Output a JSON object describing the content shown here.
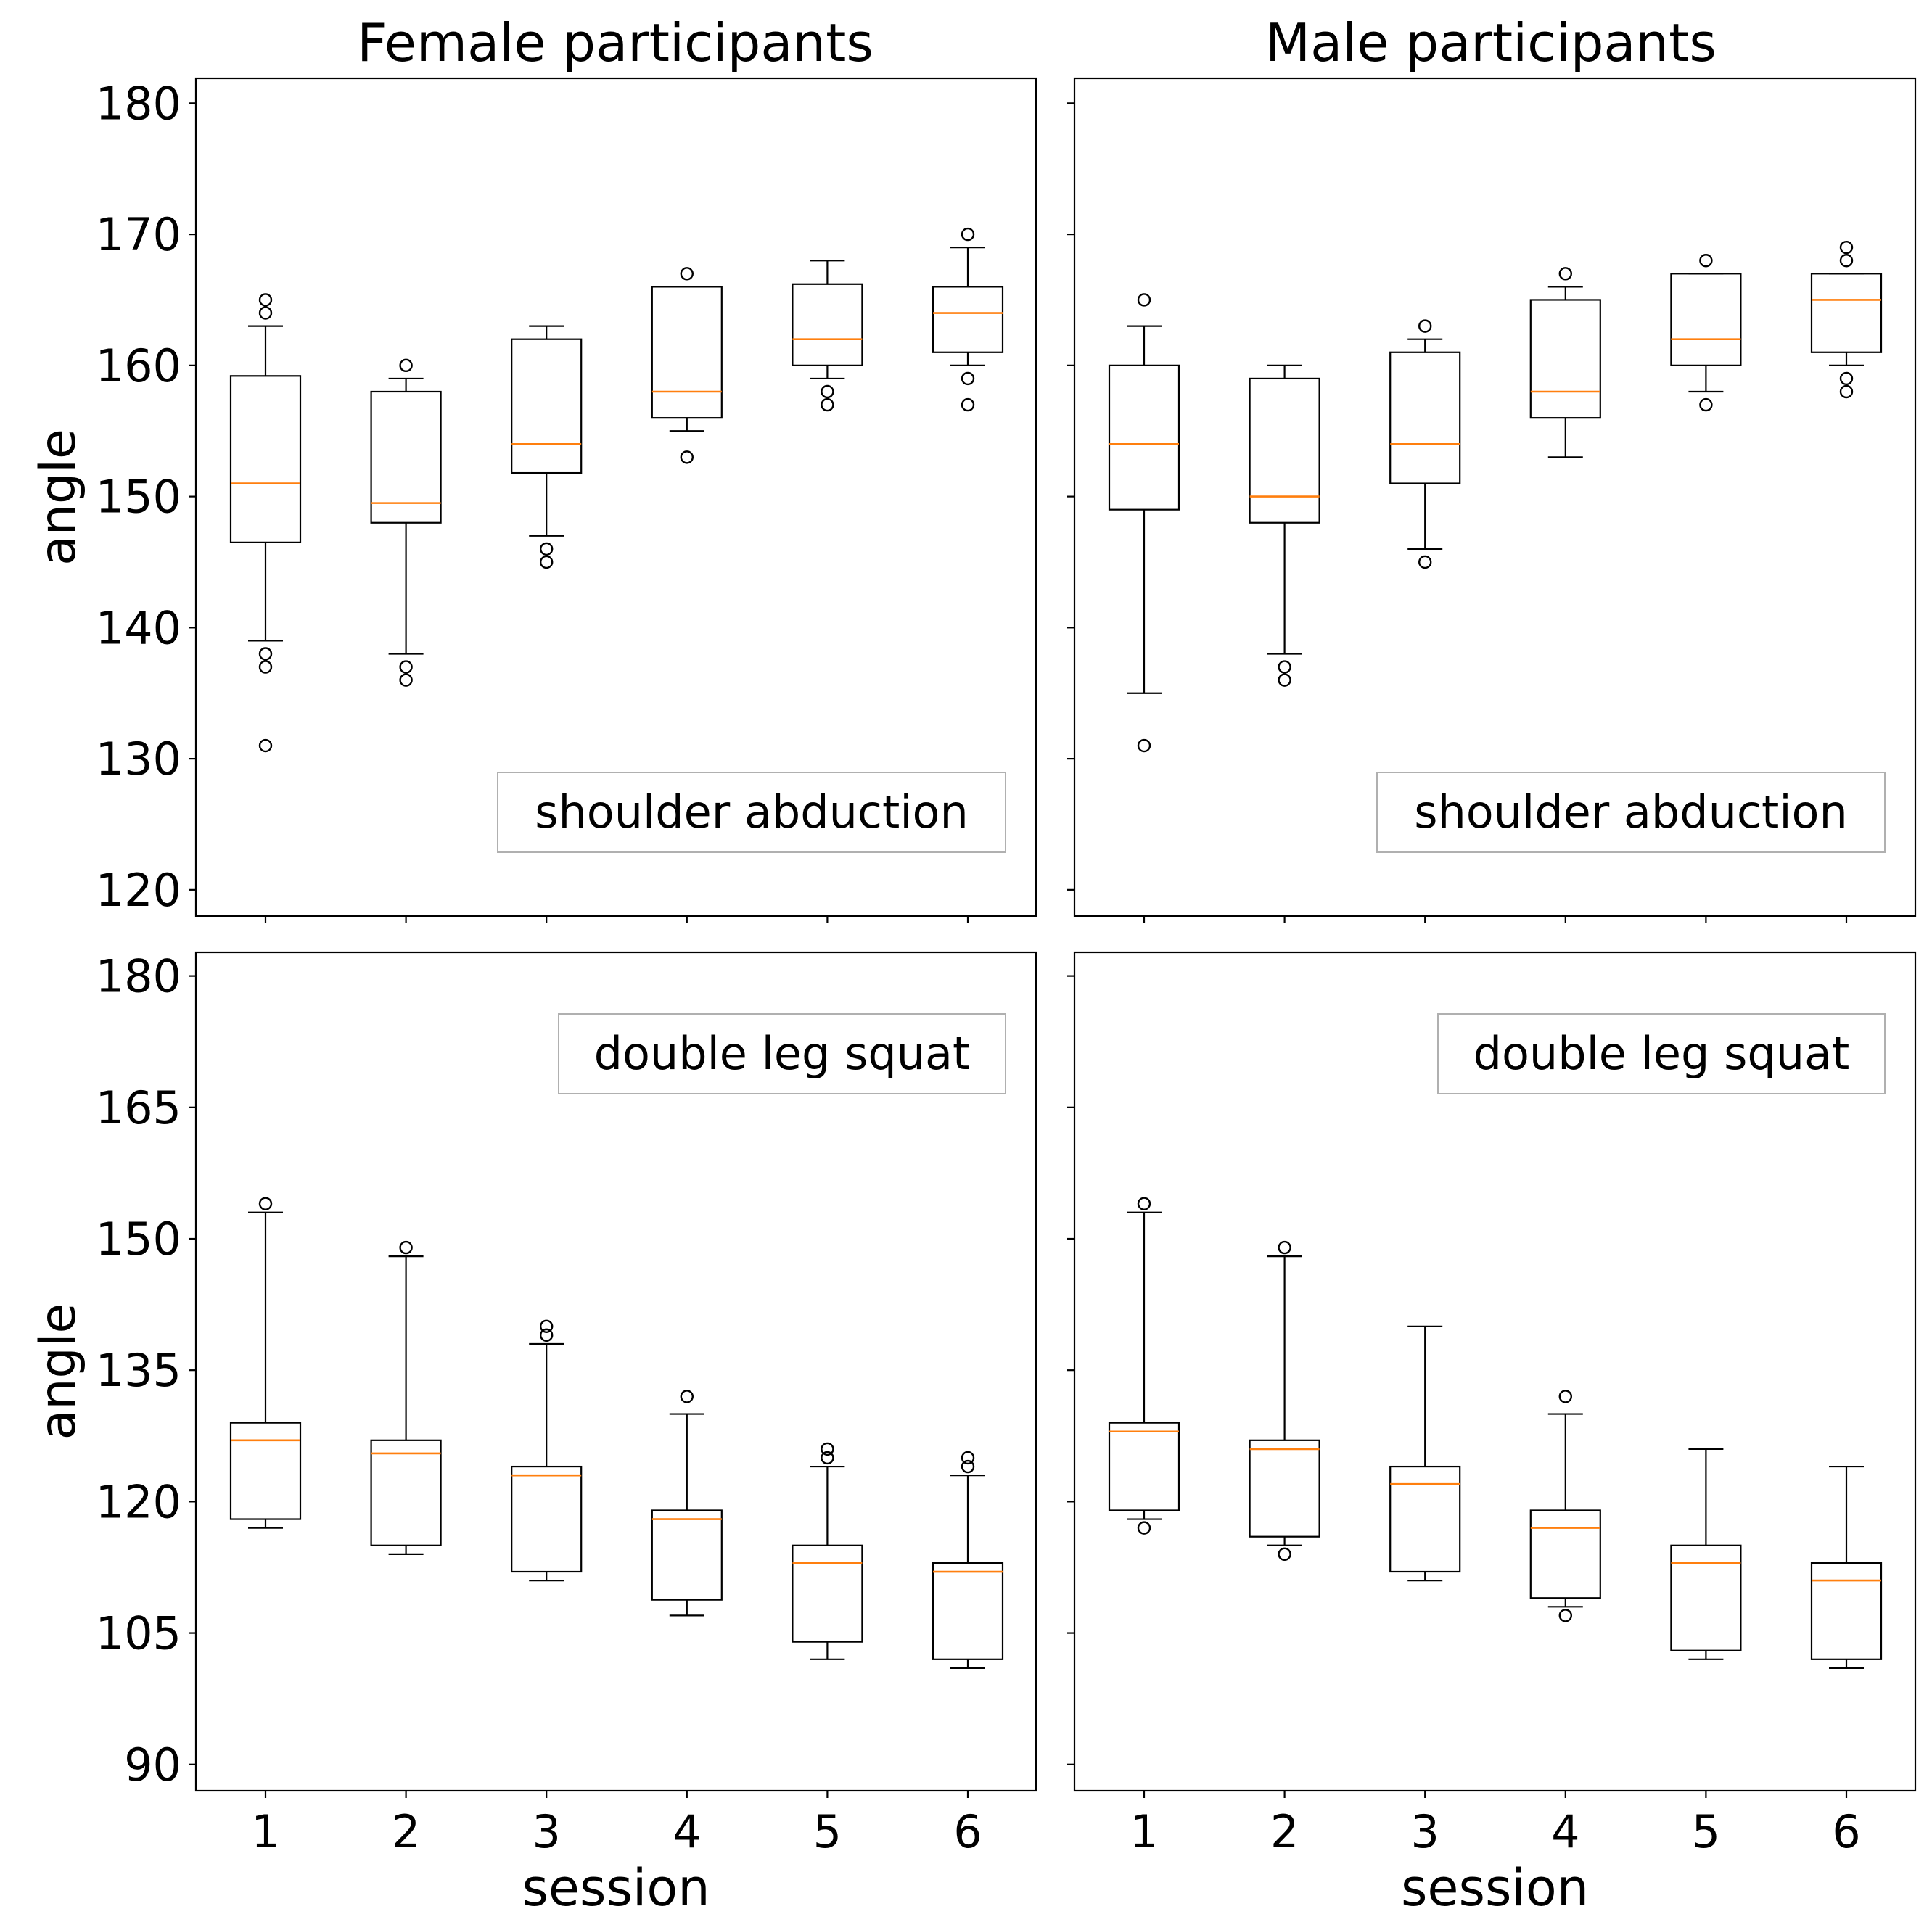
{
  "figure": {
    "column_titles": [
      "Female participants",
      "Male participants"
    ],
    "median_color": "#ff7f0e",
    "box_color": "#000000"
  },
  "chart_data": [
    {
      "type": "boxplot",
      "row": 0,
      "col": 0,
      "title": "Female participants",
      "annotation": "shoulder abduction",
      "annotation_position": "bottom-right",
      "xlabel": "",
      "ylabel": "angle",
      "categories": [
        "1",
        "2",
        "3",
        "4",
        "5",
        "6"
      ],
      "x_ticks": [
        "1",
        "2",
        "3",
        "4",
        "5",
        "6"
      ],
      "ylim": [
        118,
        181.9
      ],
      "y_ticks": [
        120,
        130,
        140,
        150,
        160,
        170,
        180
      ],
      "y_tick_labels": [
        "120",
        "130",
        "140",
        "150",
        "160",
        "170",
        "180"
      ],
      "show_x_tick_labels": false,
      "show_y_tick_labels": true,
      "boxes": [
        {
          "session": "1",
          "whislo": 139,
          "q1": 146.5,
          "med": 151,
          "q3": 159.2,
          "whishi": 163,
          "fliers": [
            131,
            137,
            138,
            164,
            165
          ]
        },
        {
          "session": "2",
          "whislo": 138,
          "q1": 148,
          "med": 149.5,
          "q3": 158,
          "whishi": 159,
          "fliers": [
            136,
            137,
            160
          ]
        },
        {
          "session": "3",
          "whislo": 147,
          "q1": 151.8,
          "med": 154,
          "q3": 162,
          "whishi": 163,
          "fliers": [
            145,
            146
          ]
        },
        {
          "session": "4",
          "whislo": 155,
          "q1": 156,
          "med": 158,
          "q3": 166,
          "whishi": 166,
          "fliers": [
            153,
            167
          ]
        },
        {
          "session": "5",
          "whislo": 159,
          "q1": 160,
          "med": 162,
          "q3": 166.2,
          "whishi": 168,
          "fliers": [
            157,
            158
          ]
        },
        {
          "session": "6",
          "whislo": 160,
          "q1": 161,
          "med": 164,
          "q3": 166,
          "whishi": 169,
          "fliers": [
            157,
            159,
            170
          ]
        }
      ]
    },
    {
      "type": "boxplot",
      "row": 0,
      "col": 1,
      "title": "Male participants",
      "annotation": "shoulder abduction",
      "annotation_position": "bottom-right",
      "xlabel": "",
      "ylabel": "",
      "categories": [
        "1",
        "2",
        "3",
        "4",
        "5",
        "6"
      ],
      "x_ticks": [
        "1",
        "2",
        "3",
        "4",
        "5",
        "6"
      ],
      "ylim": [
        118,
        181.9
      ],
      "y_ticks": [
        120,
        130,
        140,
        150,
        160,
        170,
        180
      ],
      "y_tick_labels": [
        "120",
        "130",
        "140",
        "150",
        "160",
        "170",
        "180"
      ],
      "show_x_tick_labels": false,
      "show_y_tick_labels": false,
      "boxes": [
        {
          "session": "1",
          "whislo": 135,
          "q1": 149,
          "med": 154,
          "q3": 160,
          "whishi": 163,
          "fliers": [
            131,
            165
          ]
        },
        {
          "session": "2",
          "whislo": 138,
          "q1": 148,
          "med": 150,
          "q3": 159,
          "whishi": 160,
          "fliers": [
            136,
            137
          ]
        },
        {
          "session": "3",
          "whislo": 146,
          "q1": 151,
          "med": 154,
          "q3": 161,
          "whishi": 162,
          "fliers": [
            145,
            163
          ]
        },
        {
          "session": "4",
          "whislo": 153,
          "q1": 156,
          "med": 158,
          "q3": 165,
          "whishi": 166,
          "fliers": [
            167
          ]
        },
        {
          "session": "5",
          "whislo": 158,
          "q1": 160,
          "med": 162,
          "q3": 167,
          "whishi": 167,
          "fliers": [
            157,
            168
          ]
        },
        {
          "session": "6",
          "whislo": 160,
          "q1": 161,
          "med": 165,
          "q3": 167,
          "whishi": 167,
          "fliers": [
            158,
            159,
            168,
            169
          ]
        }
      ]
    },
    {
      "type": "boxplot",
      "row": 1,
      "col": 0,
      "title": "",
      "annotation": "double leg squat",
      "annotation_position": "top-right",
      "xlabel": "session",
      "ylabel": "angle",
      "categories": [
        "1",
        "2",
        "3",
        "4",
        "5",
        "6"
      ],
      "x_ticks": [
        "1",
        "2",
        "3",
        "4",
        "5",
        "6"
      ],
      "ylim": [
        87,
        182.7
      ],
      "y_ticks": [
        90,
        105,
        120,
        135,
        150,
        165,
        180
      ],
      "y_tick_labels": [
        "90",
        "105",
        "120",
        "135",
        "150",
        "165",
        "180"
      ],
      "show_x_tick_labels": true,
      "show_y_tick_labels": true,
      "boxes": [
        {
          "session": "1",
          "whislo": 117,
          "q1": 118,
          "med": 127,
          "q3": 129,
          "whishi": 153,
          "fliers": [
            154
          ]
        },
        {
          "session": "2",
          "whislo": 114,
          "q1": 115,
          "med": 125.5,
          "q3": 127,
          "whishi": 148,
          "fliers": [
            149
          ]
        },
        {
          "session": "3",
          "whislo": 111,
          "q1": 112,
          "med": 123,
          "q3": 124,
          "whishi": 138,
          "fliers": [
            139,
            140
          ]
        },
        {
          "session": "4",
          "whislo": 107,
          "q1": 108.8,
          "med": 118,
          "q3": 119,
          "whishi": 130,
          "fliers": [
            132
          ]
        },
        {
          "session": "5",
          "whislo": 102,
          "q1": 104,
          "med": 113,
          "q3": 115,
          "whishi": 124,
          "fliers": [
            125,
            126
          ]
        },
        {
          "session": "6",
          "whislo": 101,
          "q1": 102,
          "med": 112,
          "q3": 113,
          "whishi": 123,
          "fliers": [
            124,
            125
          ]
        }
      ]
    },
    {
      "type": "boxplot",
      "row": 1,
      "col": 1,
      "title": "",
      "annotation": "double leg squat",
      "annotation_position": "top-right",
      "xlabel": "session",
      "ylabel": "",
      "categories": [
        "1",
        "2",
        "3",
        "4",
        "5",
        "6"
      ],
      "x_ticks": [
        "1",
        "2",
        "3",
        "4",
        "5",
        "6"
      ],
      "ylim": [
        87,
        182.7
      ],
      "y_ticks": [
        90,
        105,
        120,
        135,
        150,
        165,
        180
      ],
      "y_tick_labels": [
        "90",
        "105",
        "120",
        "135",
        "150",
        "165",
        "180"
      ],
      "show_x_tick_labels": true,
      "show_y_tick_labels": false,
      "boxes": [
        {
          "session": "1",
          "whislo": 118,
          "q1": 119,
          "med": 128,
          "q3": 129,
          "whishi": 153,
          "fliers": [
            117,
            154
          ]
        },
        {
          "session": "2",
          "whislo": 115,
          "q1": 116,
          "med": 126,
          "q3": 127,
          "whishi": 148,
          "fliers": [
            114,
            149
          ]
        },
        {
          "session": "3",
          "whislo": 111,
          "q1": 112,
          "med": 122,
          "q3": 124,
          "whishi": 140,
          "fliers": []
        },
        {
          "session": "4",
          "whislo": 108,
          "q1": 109,
          "med": 117,
          "q3": 119,
          "whishi": 130,
          "fliers": [
            107,
            132
          ]
        },
        {
          "session": "5",
          "whislo": 102,
          "q1": 103,
          "med": 113,
          "q3": 115,
          "whishi": 126,
          "fliers": []
        },
        {
          "session": "6",
          "whislo": 101,
          "q1": 102,
          "med": 111,
          "q3": 113,
          "whishi": 124,
          "fliers": []
        }
      ]
    }
  ]
}
